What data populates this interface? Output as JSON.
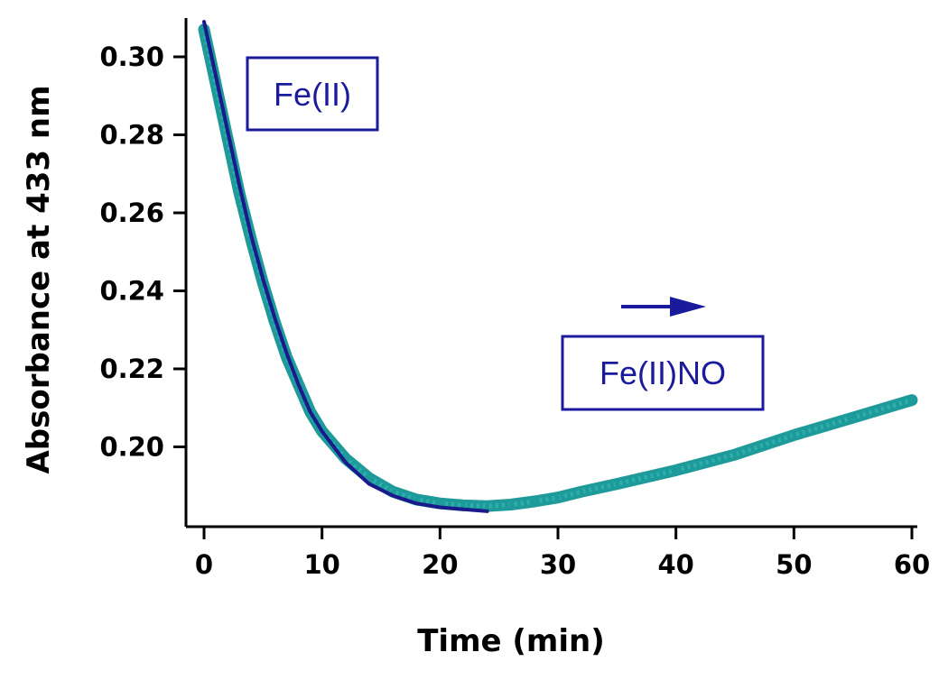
{
  "chart_data": {
    "type": "line",
    "title": "",
    "xlabel": "Time (min)",
    "ylabel": "Absorbance at 433 nm",
    "xlim": [
      -1.5,
      61
    ],
    "ylim": [
      0.179,
      0.31
    ],
    "x_ticks": [
      0,
      10,
      20,
      30,
      40,
      50,
      60
    ],
    "x_tick_labels": [
      "0",
      "10",
      "20",
      "30",
      "40",
      "50",
      "60"
    ],
    "y_ticks": [
      0.2,
      0.22,
      0.24,
      0.26,
      0.28,
      0.3
    ],
    "y_tick_labels": [
      "0.20",
      "0.22",
      "0.24",
      "0.26",
      "0.28",
      "0.30"
    ],
    "grid": false,
    "series": [
      {
        "role": "data",
        "color": "#1f9a9a",
        "x": [
          0,
          1,
          2,
          3,
          4,
          5,
          6,
          7,
          8,
          9,
          10,
          12,
          14,
          16,
          18,
          20,
          22,
          24,
          26,
          28,
          30,
          32,
          35,
          40,
          45,
          50,
          55,
          60
        ],
        "y": [
          0.307,
          0.293,
          0.279,
          0.265,
          0.253,
          0.242,
          0.232,
          0.223,
          0.216,
          0.209,
          0.204,
          0.197,
          0.192,
          0.1885,
          0.1865,
          0.1855,
          0.185,
          0.1848,
          0.1852,
          0.186,
          0.187,
          0.1885,
          0.1905,
          0.194,
          0.198,
          0.203,
          0.2075,
          0.212
        ]
      },
      {
        "role": "fit",
        "color": "#1a1a8c",
        "x": [
          0,
          1,
          2,
          3,
          4,
          5,
          6,
          7,
          8,
          9,
          10,
          12,
          14,
          16,
          18,
          20,
          22,
          24
        ],
        "y": [
          0.309,
          0.295,
          0.281,
          0.267,
          0.254,
          0.243,
          0.233,
          0.224,
          0.216,
          0.209,
          0.204,
          0.196,
          0.1905,
          0.1875,
          0.1855,
          0.1845,
          0.184,
          0.1835
        ]
      }
    ],
    "annotations": [
      {
        "text": "Fe(II)",
        "boxed": true,
        "color": "#1a1a9c"
      },
      {
        "text": "Fe(II)NO",
        "boxed": true,
        "color": "#1a1a9c",
        "arrow": "right"
      }
    ]
  }
}
